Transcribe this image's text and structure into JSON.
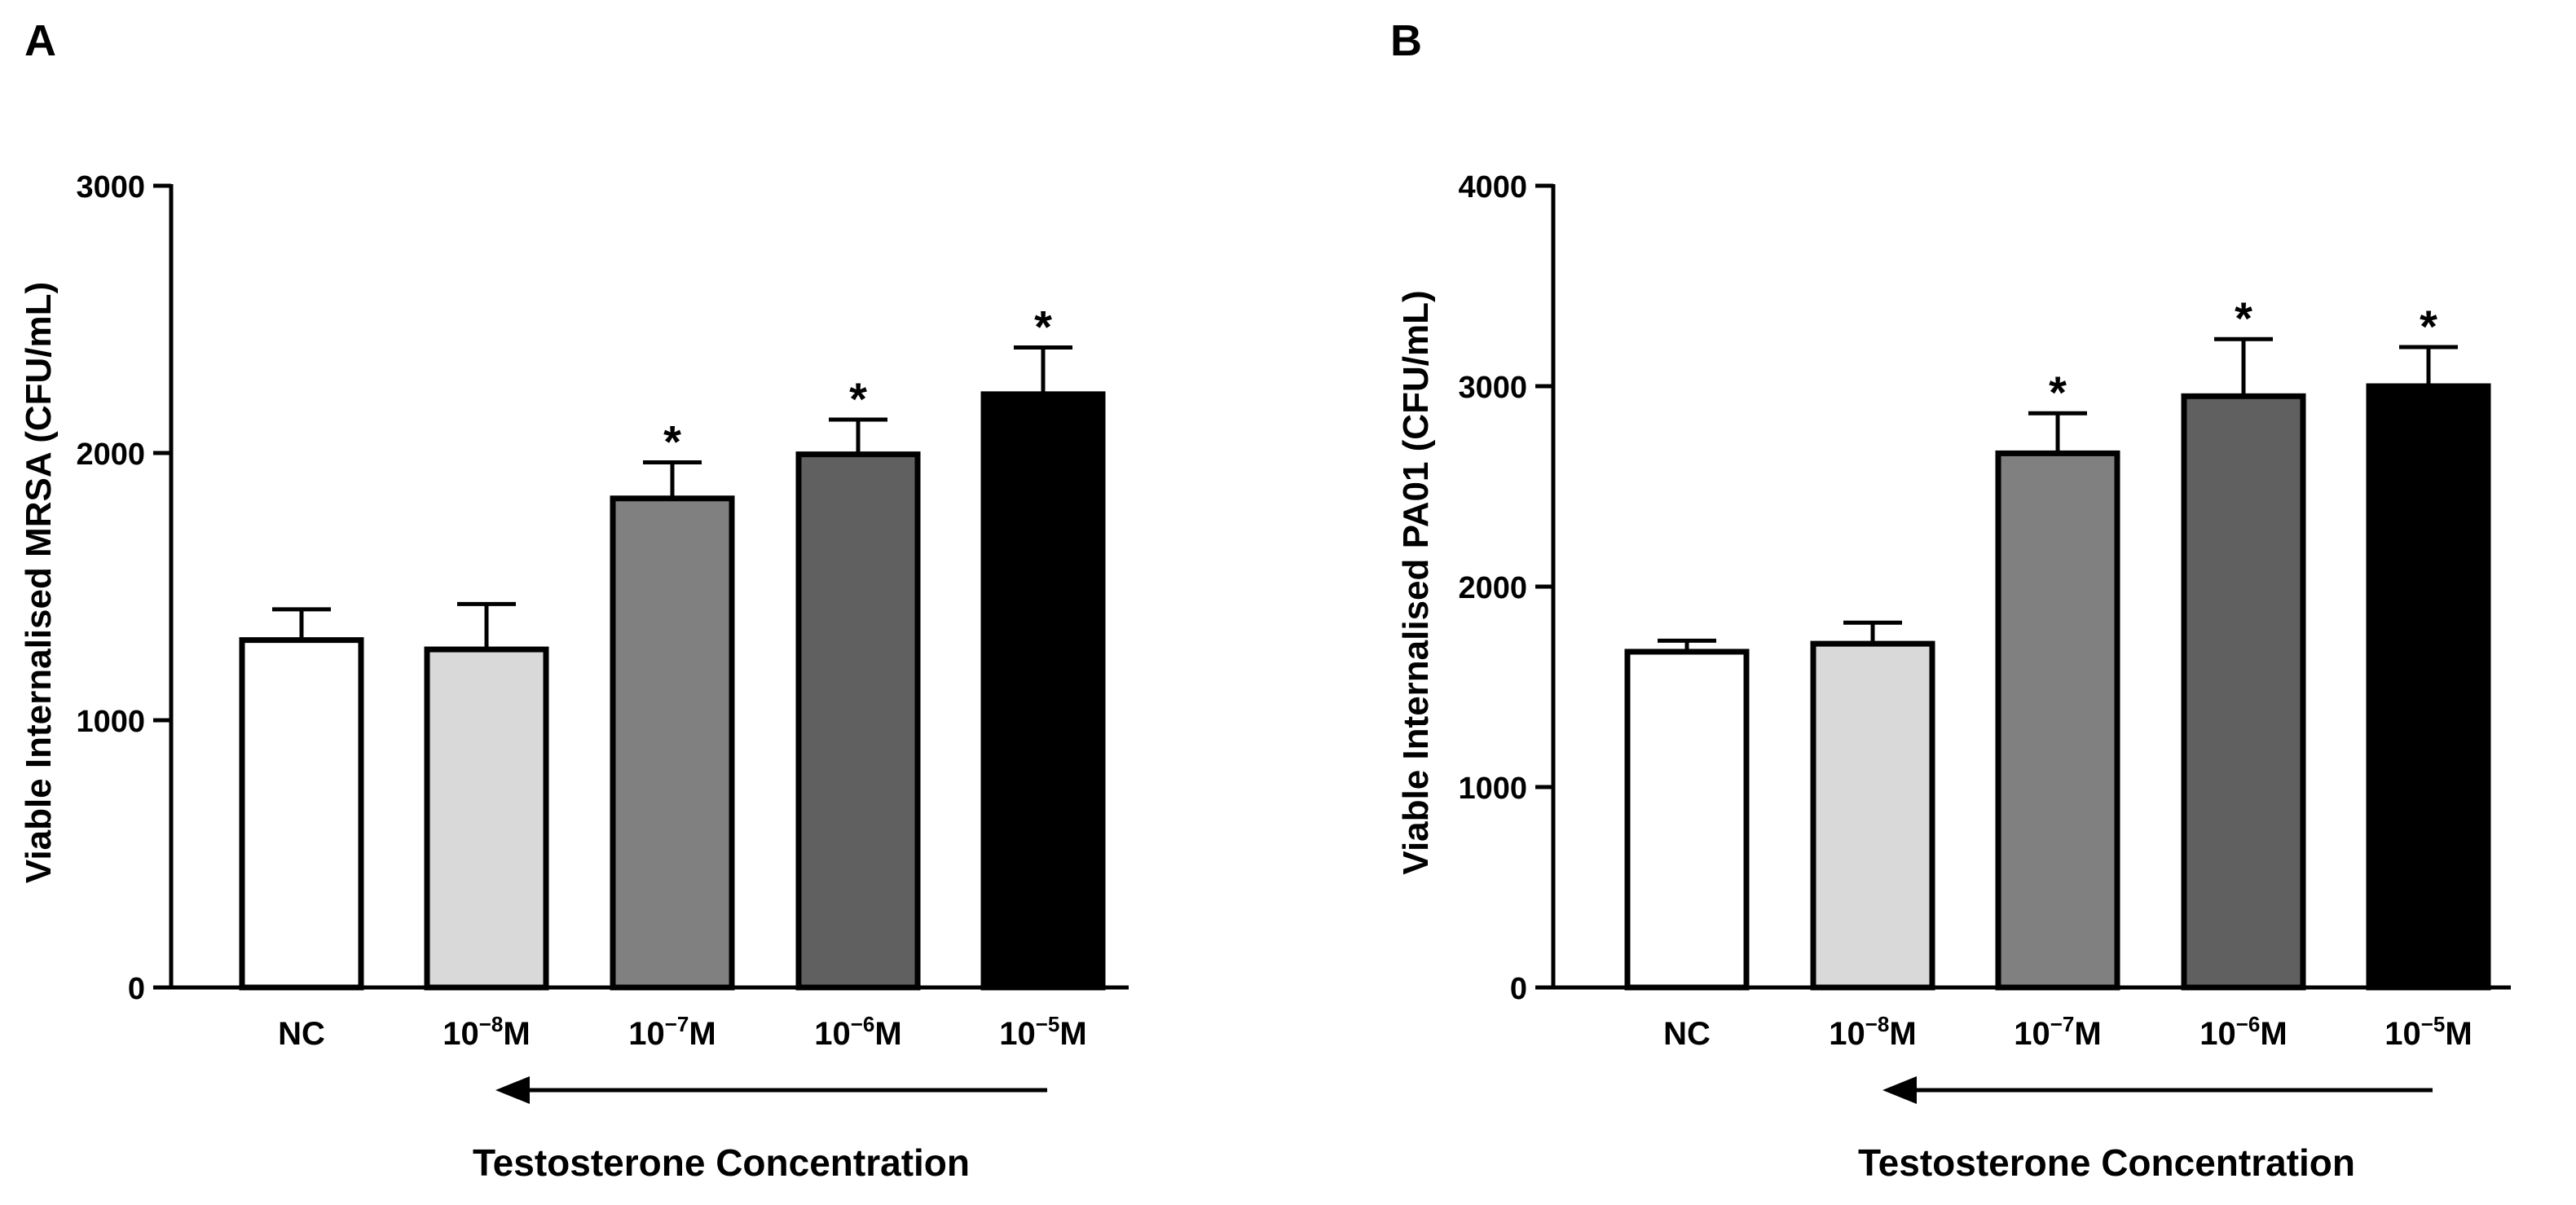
{
  "chart_data": [
    {
      "panel_label": "A",
      "type": "bar",
      "title": "",
      "xlabel": "Testosterone Concentration",
      "ylabel": "Viable Internalised MRSA (CFU/mL)",
      "ylim": [
        0,
        3000
      ],
      "yticks": [
        0,
        1000,
        2000,
        3000
      ],
      "categories": [
        {
          "base": "NC",
          "exp": "",
          "unit": ""
        },
        {
          "base": "10",
          "exp": "−8",
          "unit": "M"
        },
        {
          "base": "10",
          "exp": "−7",
          "unit": "M"
        },
        {
          "base": "10",
          "exp": "−6",
          "unit": "M"
        },
        {
          "base": "10",
          "exp": "−5",
          "unit": "M"
        }
      ],
      "values": [
        1300,
        1265,
        1830,
        1995,
        2220
      ],
      "errors": [
        115,
        170,
        135,
        130,
        175
      ],
      "significance": [
        "",
        "",
        "*",
        "*",
        "*"
      ],
      "colors": [
        "#ffffff",
        "#d9d9d9",
        "#808080",
        "#606060",
        "#000000"
      ],
      "arrow": "right-to-left"
    },
    {
      "panel_label": "B",
      "type": "bar",
      "title": "",
      "xlabel": "Testosterone Concentration",
      "ylabel": "Viable Internalised PA01 (CFU/mL)",
      "ylim": [
        0,
        4000
      ],
      "yticks": [
        0,
        1000,
        2000,
        3000,
        4000
      ],
      "categories": [
        {
          "base": "NC",
          "exp": "",
          "unit": ""
        },
        {
          "base": "10",
          "exp": "−8",
          "unit": "M"
        },
        {
          "base": "10",
          "exp": "−7",
          "unit": "M"
        },
        {
          "base": "10",
          "exp": "−6",
          "unit": "M"
        },
        {
          "base": "10",
          "exp": "−5",
          "unit": "M"
        }
      ],
      "values": [
        1675,
        1715,
        2665,
        2950,
        3000
      ],
      "errors": [
        55,
        105,
        200,
        285,
        195
      ],
      "significance": [
        "",
        "",
        "*",
        "*",
        "*"
      ],
      "colors": [
        "#ffffff",
        "#d9d9d9",
        "#808080",
        "#606060",
        "#000000"
      ],
      "arrow": "right-to-left"
    }
  ]
}
